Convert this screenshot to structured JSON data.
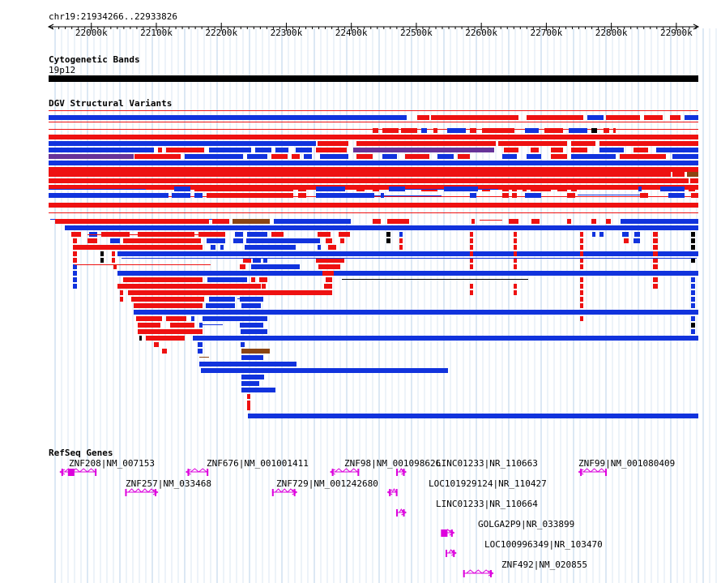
{
  "region": {
    "label": "chr19:21934266..22933826",
    "start": 21934266,
    "end": 22933826
  },
  "ruler": {
    "ticks": [
      {
        "pos": 22000000,
        "label": "22000k"
      },
      {
        "pos": 22100000,
        "label": "22100k"
      },
      {
        "pos": 22200000,
        "label": "22200k"
      },
      {
        "pos": 22300000,
        "label": "22300k"
      },
      {
        "pos": 22400000,
        "label": "22400k"
      },
      {
        "pos": 22500000,
        "label": "22500k"
      },
      {
        "pos": 22600000,
        "label": "22600k"
      },
      {
        "pos": 22700000,
        "label": "22700k"
      },
      {
        "pos": 22800000,
        "label": "22800k"
      },
      {
        "pos": 22900000,
        "label": "22900k"
      }
    ]
  },
  "tracks": {
    "cytobands": {
      "title": "Cytogenetic Bands",
      "band": "19p12",
      "color": "#000000"
    },
    "dgv": {
      "title": "DGV Structural Variants",
      "colors": {
        "gain": "#ee1111",
        "loss": "#1133dd",
        "both": "#663399",
        "complex": "#8b4513",
        "black": "#000000"
      }
    },
    "refseq": {
      "title": "RefSeq Genes",
      "color": "#dd00dd",
      "genes": [
        {
          "label": "ZNF208|NM_007153",
          "start": 21954000,
          "end": 22008000,
          "strand": "-"
        },
        {
          "label": "ZNF257|NM_033468",
          "start": 22052000,
          "end": 22100000,
          "strand": "+"
        },
        {
          "label": "ZNF676|NM_001001411",
          "start": 22148000,
          "end": 22180000,
          "strand": "-"
        },
        {
          "label": "ZNF729|NM_001242680",
          "start": 22278000,
          "end": 22314000,
          "strand": "+"
        },
        {
          "label": "ZNF98|NM_001098626",
          "start": 22370000,
          "end": 22412000,
          "strand": "-"
        },
        {
          "label": "LINC01233|NR_110663",
          "start": 22469000,
          "end": 22482000,
          "strand": "+"
        },
        {
          "label": "LOC101929124|NR_110427",
          "start": 22458000,
          "end": 22471000,
          "strand": "-"
        },
        {
          "label": "LINC01233|NR_110664",
          "start": 22469000,
          "end": 22482000,
          "strand": "+"
        },
        {
          "label": "GOLGA2P9|NR_033899",
          "start": 22538000,
          "end": 22556000,
          "strand": "+"
        },
        {
          "label": "LOC100996349|NR_103470",
          "start": 22545000,
          "end": 22559000,
          "strand": "+"
        },
        {
          "label": "ZNF492|NM_020855",
          "start": 22572000,
          "end": 22616000,
          "strand": "+"
        },
        {
          "label": "ZNF99|NM_001080409",
          "start": 22752000,
          "end": 22793000,
          "strand": "-"
        }
      ]
    }
  }
}
